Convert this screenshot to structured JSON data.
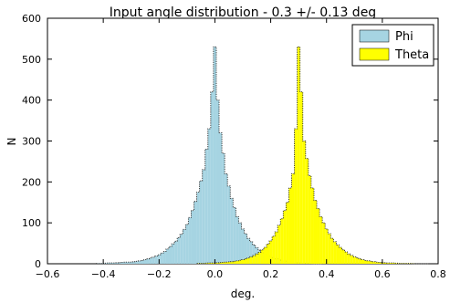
{
  "chart_data": {
    "type": "histogram",
    "title": "Input angle distribution - 0.3 +/- 0.13 deg",
    "xlabel": "deg.",
    "ylabel": "N",
    "xlim": [
      -0.6,
      0.8
    ],
    "ylim": [
      0,
      600
    ],
    "xticks": [
      "−0.6",
      "−0.4",
      "−0.2",
      "0.0",
      "0.2",
      "0.4",
      "0.6",
      "0.8"
    ],
    "yticks": [
      "0",
      "100",
      "200",
      "300",
      "400",
      "500",
      "600"
    ],
    "grid": false,
    "legend_position": "top-right",
    "bin_width": 0.01,
    "series": [
      {
        "name": "Phi",
        "color": "#a6d4e2",
        "x": [
          -0.42,
          -0.4,
          -0.38,
          -0.36,
          -0.34,
          -0.32,
          -0.3,
          -0.28,
          -0.26,
          -0.24,
          -0.22,
          -0.2,
          -0.18,
          -0.16,
          -0.14,
          -0.12,
          -0.1,
          -0.08,
          -0.06,
          -0.04,
          -0.02,
          -0.01,
          0.0,
          0.01,
          0.02,
          0.04,
          0.06,
          0.08,
          0.1,
          0.12,
          0.14,
          0.16,
          0.18,
          0.2,
          0.22,
          0.24,
          0.26,
          0.28,
          0.3,
          0.32,
          0.34,
          0.36,
          0.38
        ],
        "y": [
          1,
          1,
          2,
          2,
          3,
          4,
          4,
          6,
          8,
          12,
          16,
          22,
          30,
          42,
          55,
          72,
          96,
          130,
          175,
          230,
          330,
          420,
          530,
          400,
          320,
          220,
          160,
          115,
          85,
          62,
          46,
          33,
          24,
          17,
          12,
          8,
          5,
          3,
          2,
          1,
          1,
          0,
          0
        ]
      },
      {
        "name": "Theta",
        "color": "#ffff00",
        "x": [
          -0.06,
          -0.04,
          -0.02,
          0.0,
          0.02,
          0.04,
          0.06,
          0.08,
          0.1,
          0.12,
          0.14,
          0.16,
          0.18,
          0.2,
          0.22,
          0.24,
          0.26,
          0.28,
          0.29,
          0.3,
          0.31,
          0.32,
          0.34,
          0.36,
          0.38,
          0.4,
          0.42,
          0.44,
          0.46,
          0.48,
          0.5,
          0.52,
          0.54,
          0.56,
          0.58,
          0.6,
          0.62,
          0.64,
          0.66,
          0.68,
          0.7,
          0.72,
          0.74,
          0.76
        ],
        "y": [
          1,
          1,
          2,
          2,
          3,
          4,
          5,
          7,
          10,
          14,
          20,
          28,
          40,
          56,
          78,
          110,
          150,
          220,
          330,
          530,
          420,
          300,
          215,
          155,
          115,
          85,
          62,
          46,
          34,
          24,
          17,
          12,
          8,
          6,
          4,
          3,
          2,
          2,
          1,
          1,
          1,
          0,
          0,
          0
        ]
      }
    ]
  }
}
